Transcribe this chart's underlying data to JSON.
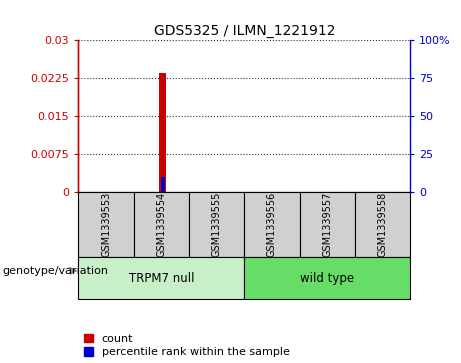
{
  "title": "GDS5325 / ILMN_1221912",
  "samples": [
    "GSM1339553",
    "GSM1339554",
    "GSM1339555",
    "GSM1339556",
    "GSM1339557",
    "GSM1339558"
  ],
  "red_values": [
    0.0,
    0.0235,
    0.0,
    0.0,
    0.0,
    0.0
  ],
  "blue_values": [
    0.0,
    0.003,
    0.0,
    0.0,
    0.0,
    0.0
  ],
  "ylim_left": [
    0,
    0.03
  ],
  "ylim_right": [
    0,
    100
  ],
  "yticks_left": [
    0,
    0.0075,
    0.015,
    0.0225,
    0.03
  ],
  "ytick_labels_left": [
    "0",
    "0.0075",
    "0.015",
    "0.0225",
    "0.03"
  ],
  "yticks_right": [
    0,
    25,
    50,
    75,
    100
  ],
  "ytick_labels_right": [
    "0",
    "25",
    "50",
    "75",
    "100%"
  ],
  "group1_label": "TRPM7 null",
  "group2_label": "wild type",
  "group1_indices": [
    0,
    1,
    2
  ],
  "group2_indices": [
    3,
    4,
    5
  ],
  "group1_color": "#c8f0c8",
  "group2_color": "#66dd66",
  "sample_box_color": "#d0d0d0",
  "genotype_label": "genotype/variation",
  "legend_red": "count",
  "legend_blue": "percentile rank within the sample",
  "red_color": "#cc0000",
  "blue_color": "#0000cc",
  "red_bar_width": 0.12,
  "blue_bar_width": 0.08
}
